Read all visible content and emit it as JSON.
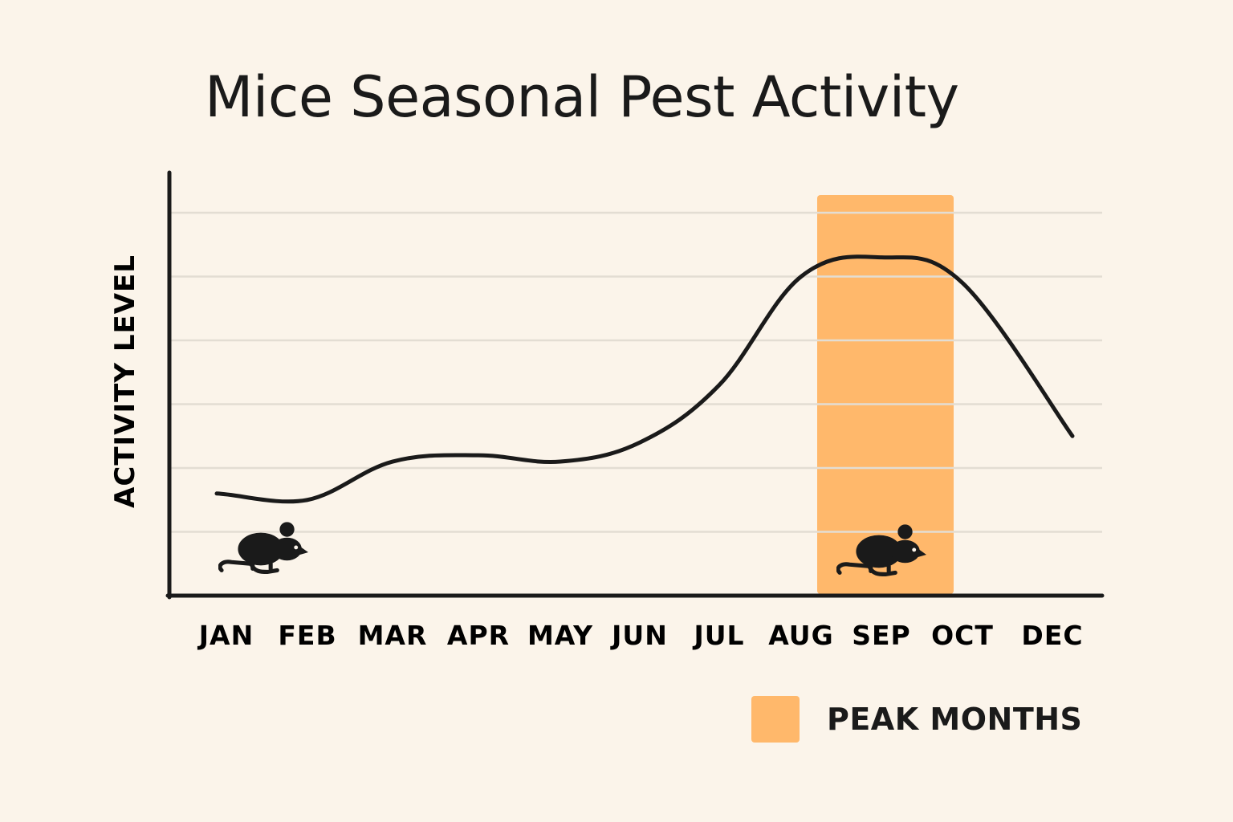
{
  "chart_data": {
    "type": "line",
    "title": "Mice Seasonal Pest Activity",
    "ylabel": "ACTIVITY LEVEL",
    "xlabel": "",
    "categories": [
      "JAN",
      "FEB",
      "MAR",
      "APR",
      "MAY",
      "JUN",
      "JUL",
      "AUG",
      "SEP",
      "OCT",
      "DEC"
    ],
    "series": [
      {
        "values": [
          1.6,
          1.5,
          2.1,
          2.2,
          2.1,
          2.4,
          3.3,
          5.0,
          5.3,
          4.9,
          2.5
        ]
      }
    ],
    "ylim": [
      0,
      6
    ],
    "grid": true,
    "highlight": {
      "label": "PEAK MONTHS",
      "from": "AUG",
      "to": "OCT"
    },
    "legend_position": "bottom-right",
    "colors": {
      "highlight": "#ffb86b",
      "line": "#1a1a1a",
      "grid": "#e3ddd3",
      "axis": "#1a1a1a"
    },
    "icons": [
      "mouse-icon",
      "mouse-icon"
    ]
  }
}
